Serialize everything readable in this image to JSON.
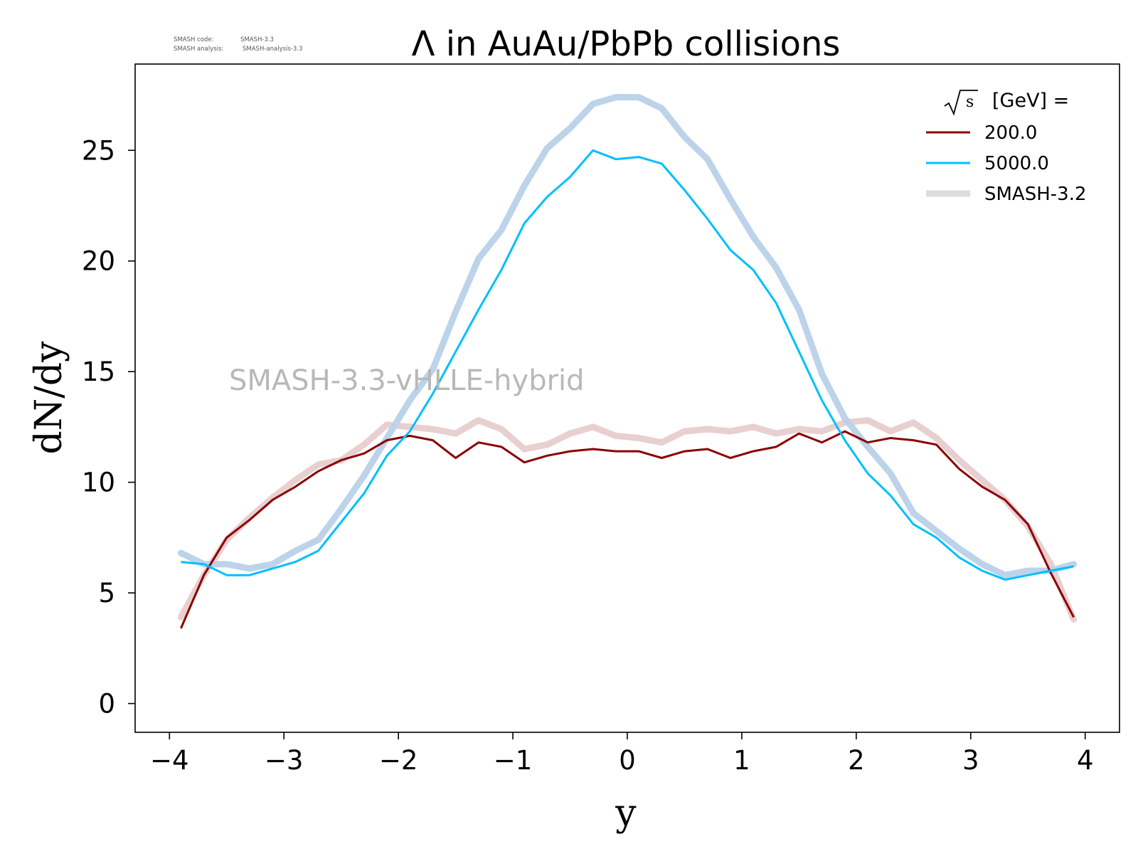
{
  "meta": {
    "code_label": "SMASH code:",
    "code_value": "SMASH-3.3",
    "analysis_label": "SMASH analysis:",
    "analysis_value": "SMASH-analysis-3.3"
  },
  "watermark": "SMASH-3.3-vHLLE-hybrid",
  "chart_data": {
    "type": "line",
    "title": "Λ in AuAu/PbPb collisions",
    "xlabel": "y",
    "ylabel": "dN/dy",
    "xlim": [
      -4.3,
      4.3
    ],
    "ylim": [
      -1.3,
      28.9
    ],
    "xticks": [
      -4,
      -3,
      -2,
      -1,
      0,
      1,
      2,
      3,
      4
    ],
    "xtick_labels": [
      "−4",
      "−3",
      "−2",
      "−1",
      "0",
      "1",
      "2",
      "3",
      "4"
    ],
    "yticks": [
      0,
      5,
      10,
      15,
      20,
      25
    ],
    "ytick_labels": [
      "0",
      "5",
      "10",
      "15",
      "20",
      "25"
    ],
    "grid": false,
    "legend": {
      "placement": "top-right",
      "title_sqrt": "s",
      "title_text": "[GeV] ="
    },
    "x": [
      -3.9,
      -3.7,
      -3.5,
      -3.3,
      -3.1,
      -2.9,
      -2.7,
      -2.5,
      -2.3,
      -2.1,
      -1.9,
      -1.7,
      -1.5,
      -1.3,
      -1.1,
      -0.9,
      -0.7,
      -0.5,
      -0.3,
      -0.1,
      0.1,
      0.3,
      0.5,
      0.7,
      0.9,
      1.1,
      1.3,
      1.5,
      1.7,
      1.9,
      2.1,
      2.3,
      2.5,
      2.7,
      2.9,
      3.1,
      3.3,
      3.5,
      3.7,
      3.9
    ],
    "series": [
      {
        "name": "200.0",
        "color": "#8b0000",
        "width": 3,
        "values": [
          3.4,
          5.8,
          7.5,
          8.3,
          9.2,
          9.8,
          10.5,
          11.0,
          11.3,
          11.9,
          12.1,
          11.9,
          11.1,
          11.8,
          11.6,
          10.9,
          11.2,
          11.4,
          11.5,
          11.4,
          11.4,
          11.1,
          11.4,
          11.5,
          11.1,
          11.4,
          11.6,
          12.2,
          11.8,
          12.3,
          11.8,
          12.0,
          11.9,
          11.7,
          10.6,
          9.8,
          9.2,
          8.1,
          5.9,
          3.9
        ]
      },
      {
        "name": "5000.0",
        "color": "#00bfff",
        "width": 3,
        "values": [
          6.4,
          6.3,
          5.8,
          5.8,
          6.1,
          6.4,
          6.9,
          8.2,
          9.5,
          11.2,
          12.3,
          14.0,
          15.9,
          17.8,
          19.6,
          21.7,
          22.9,
          23.8,
          25.0,
          24.6,
          24.7,
          24.4,
          23.2,
          21.9,
          20.5,
          19.6,
          18.1,
          15.9,
          13.7,
          11.9,
          10.4,
          9.4,
          8.1,
          7.5,
          6.6,
          6.0,
          5.6,
          5.8,
          6.0,
          6.2
        ]
      }
    ],
    "reference": {
      "name": "SMASH-3.2",
      "legend_color": "#dddddd",
      "width": 9,
      "series": [
        {
          "color": "#e8cfd0",
          "values": [
            3.9,
            5.8,
            7.4,
            8.4,
            9.3,
            10.1,
            10.8,
            11.0,
            11.7,
            12.6,
            12.5,
            12.4,
            12.2,
            12.8,
            12.4,
            11.5,
            11.7,
            12.2,
            12.5,
            12.1,
            12.0,
            11.8,
            12.3,
            12.4,
            12.3,
            12.5,
            12.2,
            12.4,
            12.3,
            12.7,
            12.8,
            12.3,
            12.7,
            12.0,
            11.0,
            10.1,
            9.2,
            8.0,
            6.3,
            3.8
          ]
        },
        {
          "color": "#bcd3ea",
          "values": [
            6.8,
            6.3,
            6.3,
            6.1,
            6.3,
            6.9,
            7.4,
            8.8,
            10.3,
            12.0,
            13.7,
            15.1,
            17.7,
            20.1,
            21.4,
            23.4,
            25.1,
            26.0,
            27.1,
            27.4,
            27.4,
            26.9,
            25.6,
            24.6,
            22.8,
            21.1,
            19.7,
            17.8,
            14.9,
            12.9,
            11.6,
            10.4,
            8.6,
            7.8,
            7.0,
            6.3,
            5.8,
            6.0,
            6.0,
            6.3
          ]
        }
      ]
    }
  }
}
